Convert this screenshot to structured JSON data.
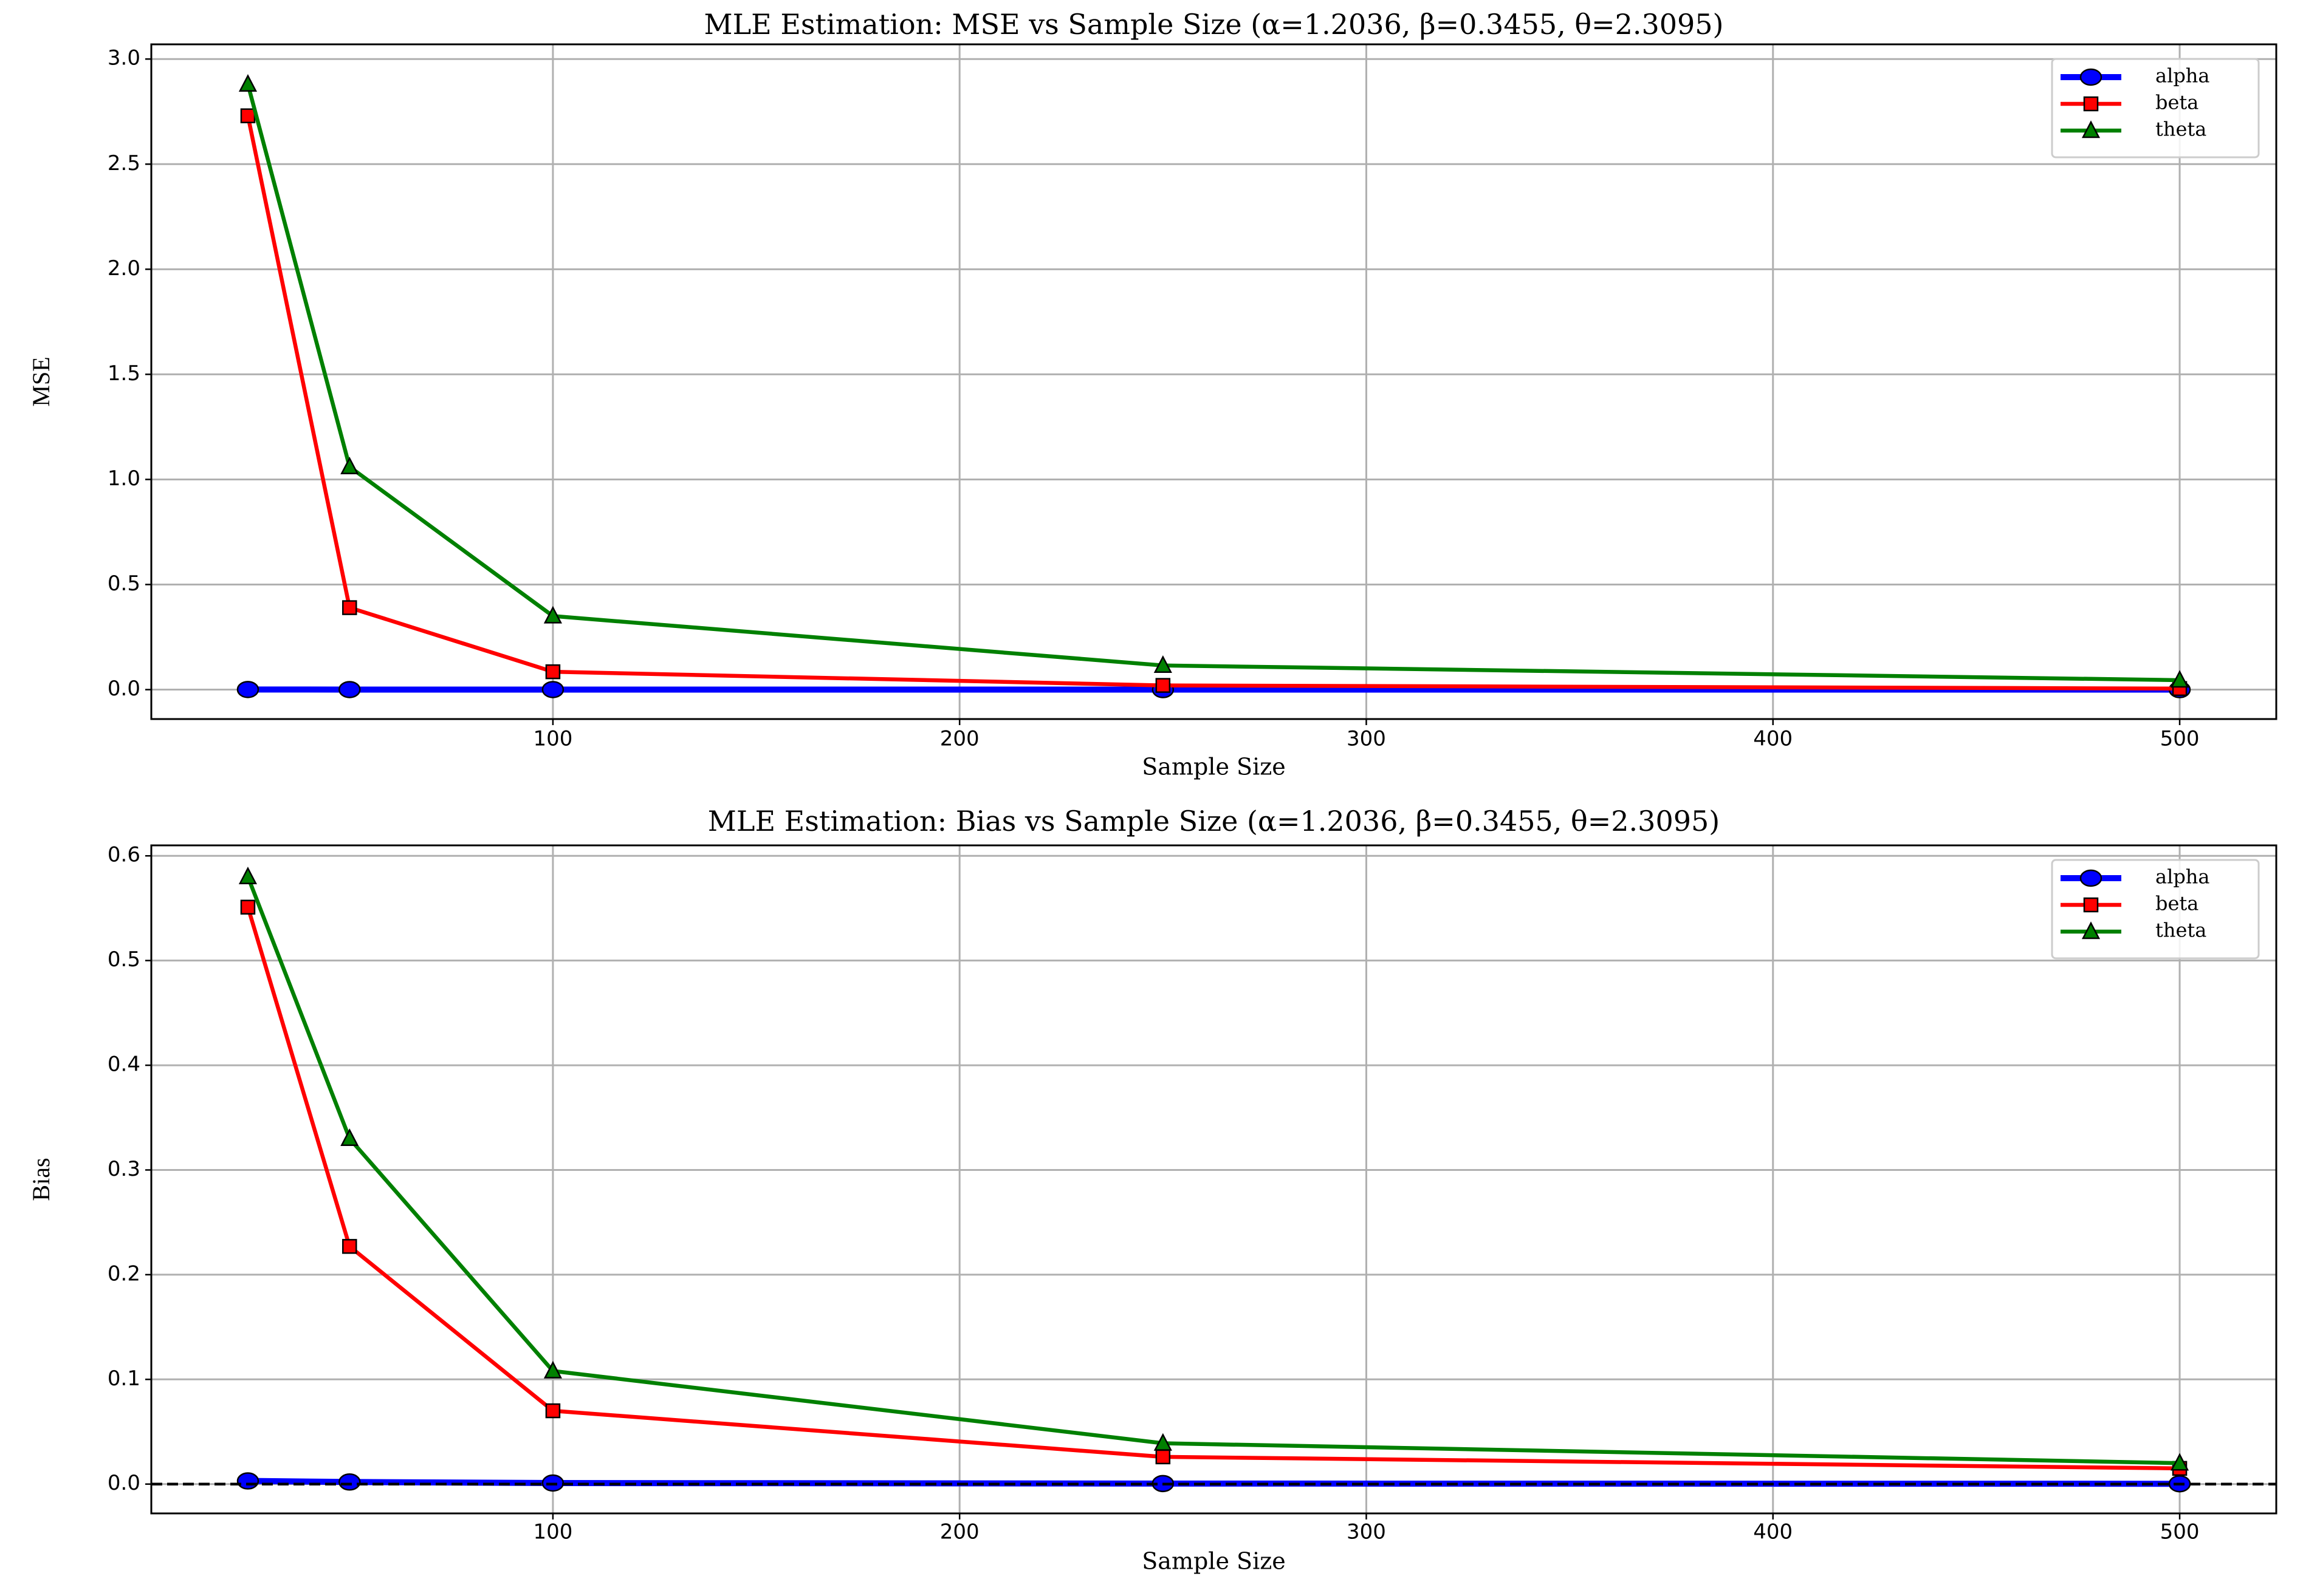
{
  "chart_data": [
    {
      "type": "line",
      "title": "MLE Estimation: MSE vs Sample Size (α=1.2036, β=0.3455, θ=2.3095)",
      "x_label": "Sample Size",
      "y_label": "MSE",
      "x": [
        25,
        50,
        100,
        250,
        500
      ],
      "series": [
        {
          "name": "alpha",
          "color": "#0000ff",
          "marker": "circle",
          "values": [
            0.0005,
            0.0003,
            0.0002,
            0.0001,
            5e-05
          ]
        },
        {
          "name": "beta",
          "color": "#ff0000",
          "marker": "square",
          "values": [
            2.73,
            0.39,
            0.085,
            0.02,
            0.005
          ]
        },
        {
          "name": "theta",
          "color": "#008000",
          "marker": "triangle",
          "values": [
            2.88,
            1.06,
            0.35,
            0.115,
            0.045
          ]
        }
      ],
      "xlim": [
        1.25,
        523.75
      ],
      "xticks": [
        100,
        200,
        300,
        400,
        500
      ],
      "ylim": [
        -0.14,
        3.07
      ],
      "yticks": [
        {
          "value": 0,
          "label": "0.0"
        },
        0.5,
        {
          "value": 1,
          "label": "1.0"
        },
        1.5,
        {
          "value": 2,
          "label": "2.0"
        },
        2.5,
        {
          "value": 3,
          "label": "3.0"
        }
      ],
      "grid": true,
      "legend": "upper right"
    },
    {
      "type": "line",
      "title": "MLE Estimation: Bias vs Sample Size (α=1.2036, β=0.3455, θ=2.3095)",
      "x_label": "Sample Size",
      "y_label": "Bias",
      "x": [
        25,
        50,
        100,
        250,
        500
      ],
      "series": [
        {
          "name": "alpha",
          "color": "#0000ff",
          "marker": "circle",
          "values": [
            0.003,
            0.002,
            0.001,
            0.0005,
            0.0003
          ]
        },
        {
          "name": "beta",
          "color": "#ff0000",
          "marker": "square",
          "values": [
            0.551,
            0.227,
            0.07,
            0.026,
            0.015
          ]
        },
        {
          "name": "theta",
          "color": "#008000",
          "marker": "triangle",
          "values": [
            0.58,
            0.33,
            0.108,
            0.039,
            0.02
          ]
        }
      ],
      "xlim": [
        1.25,
        523.75
      ],
      "xticks": [
        100,
        200,
        300,
        400,
        500
      ],
      "ylim": [
        -0.028,
        0.61
      ],
      "yticks": [
        {
          "value": 0,
          "label": "0.0"
        },
        0.1,
        0.2,
        0.3,
        0.4,
        0.5,
        0.6
      ],
      "hline": 0,
      "grid": true,
      "legend": "upper right"
    }
  ]
}
